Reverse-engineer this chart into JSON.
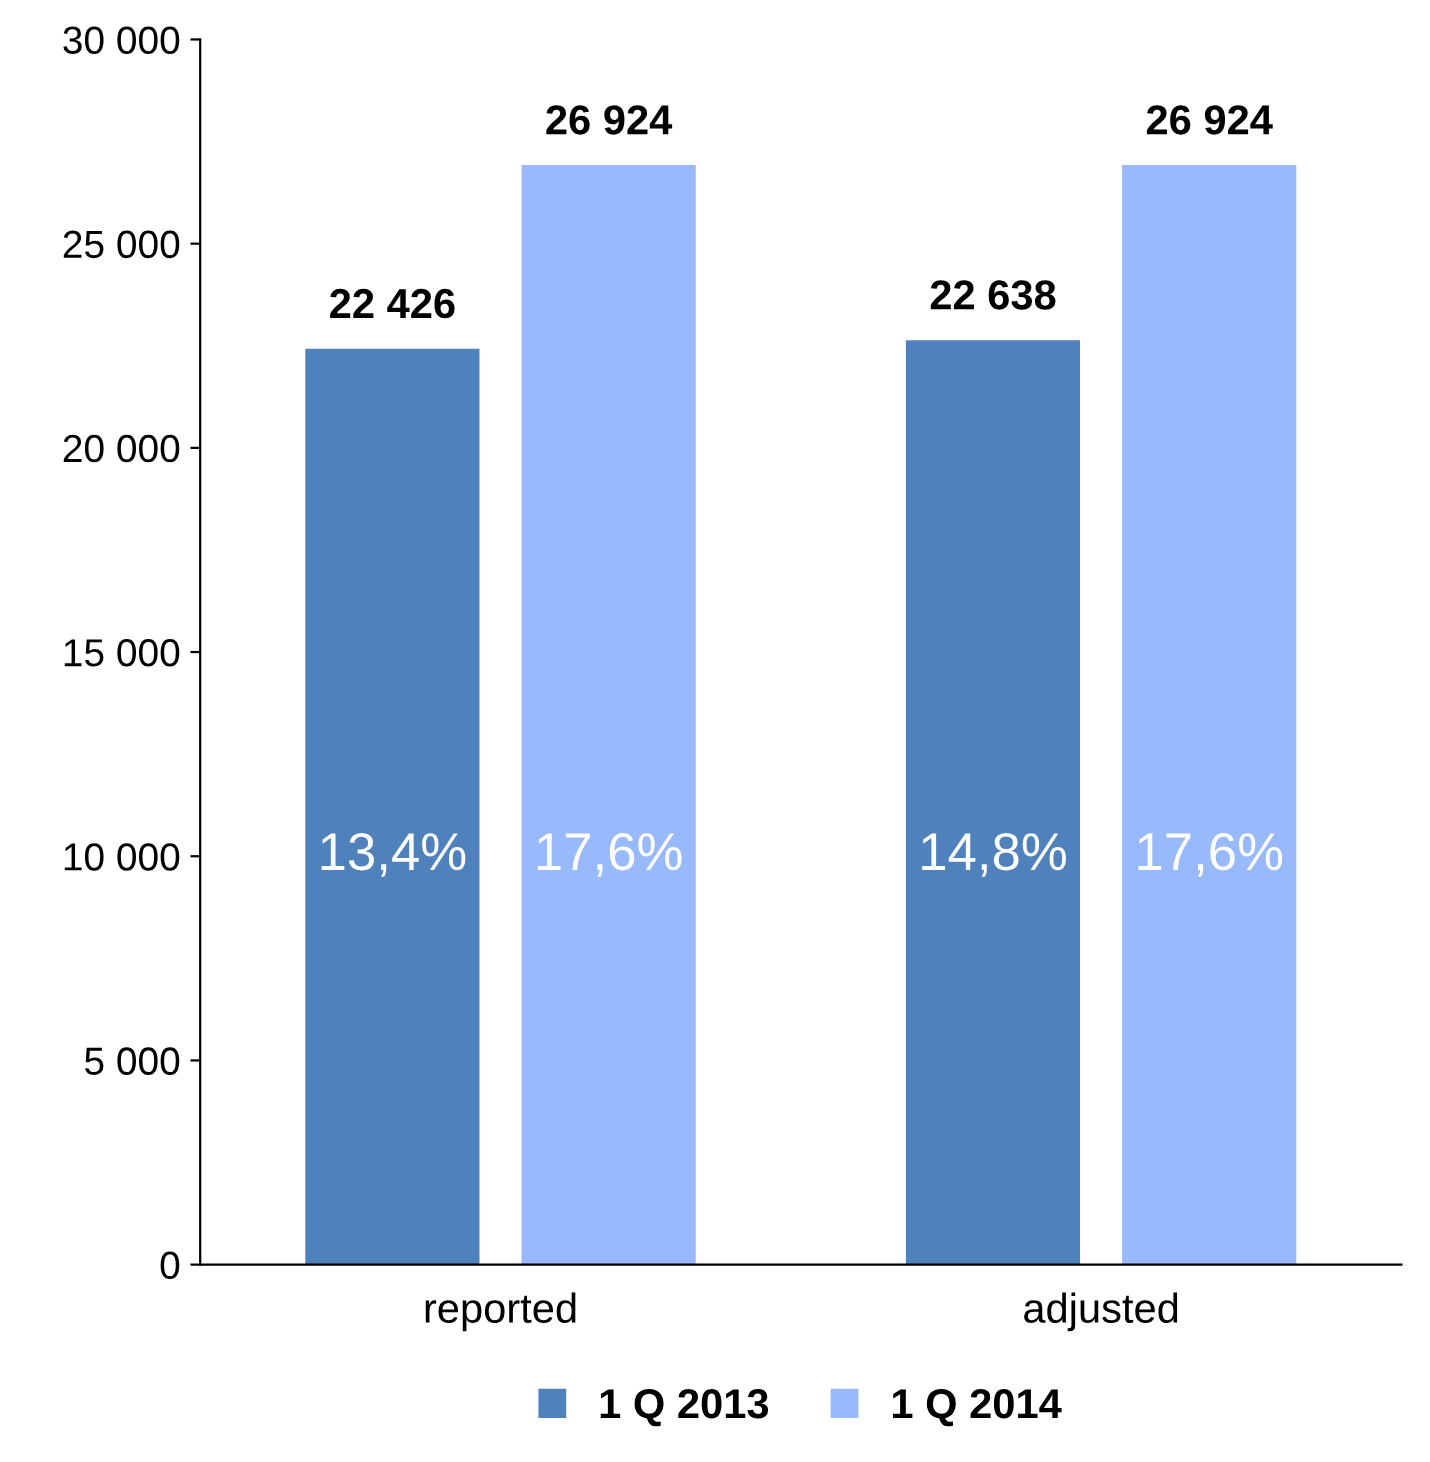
{
  "chart_data": {
    "type": "bar",
    "categories": [
      "reported",
      "adjusted"
    ],
    "series": [
      {
        "name": "1 Q 2013",
        "color": "#4f81bd",
        "values": [
          22426,
          22638
        ],
        "value_labels": [
          "22 426",
          "22 638"
        ]
      },
      {
        "name": "1 Q 2014",
        "color": "#98b9fb",
        "values": [
          26924,
          26924
        ],
        "value_labels": [
          "26 924",
          "26 924"
        ]
      }
    ],
    "annotations": [
      "13,4%",
      "17,6%",
      "14,8%",
      "17,6%"
    ],
    "ylim": [
      0,
      30000
    ],
    "yticks": [
      {
        "value": 0,
        "label": "0"
      },
      {
        "value": 5000,
        "label": "5 000"
      },
      {
        "value": 10000,
        "label": "10 000"
      },
      {
        "value": 15000,
        "label": "15 000"
      },
      {
        "value": 20000,
        "label": "20 000"
      },
      {
        "value": 25000,
        "label": "25 000"
      },
      {
        "value": 30000,
        "label": "30 000"
      }
    ],
    "grid": false,
    "legend": "bottom"
  }
}
